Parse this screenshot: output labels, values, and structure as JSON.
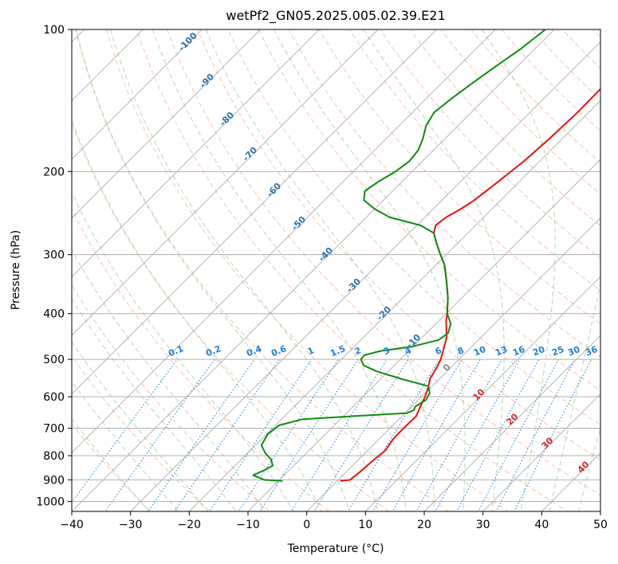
{
  "chart_data": {
    "type": "line",
    "title": "wetPf2_GN05.2025.005.02.39.E21",
    "xlabel": "Temperature (°C)",
    "ylabel": "Pressure (hPa)",
    "xlim": [
      -40,
      50
    ],
    "ylim": [
      1050,
      100
    ],
    "y_scale": "log",
    "x_ticks": [
      "−40",
      "−30",
      "−20",
      "−10",
      "0",
      "10",
      "20",
      "30",
      "40",
      "50"
    ],
    "y_ticks": [
      "100",
      "200",
      "300",
      "400",
      "500",
      "600",
      "700",
      "800",
      "900",
      "1000"
    ],
    "grid": true,
    "skew": 45,
    "series": [
      {
        "color": "#e8110c",
        "values": [
          {
            "p": 905,
            "t": 0.5
          },
          {
            "p": 900,
            "t": 2.0
          },
          {
            "p": 870,
            "t": 2.3
          },
          {
            "p": 820,
            "t": 2.6
          },
          {
            "p": 780,
            "t": 3.0
          },
          {
            "p": 740,
            "t": 2.4
          },
          {
            "p": 700,
            "t": 2.3
          },
          {
            "p": 660,
            "t": 2.4
          },
          {
            "p": 630,
            "t": 1.5
          },
          {
            "p": 600,
            "t": 0.6
          },
          {
            "p": 570,
            "t": -0.6
          },
          {
            "p": 550,
            "t": -1.6
          },
          {
            "p": 520,
            "t": -2.4
          },
          {
            "p": 500,
            "t": -3.1
          },
          {
            "p": 475,
            "t": -4.4
          },
          {
            "p": 450,
            "t": -5.8
          },
          {
            "p": 430,
            "t": -7.4
          },
          {
            "p": 415,
            "t": -8.7
          },
          {
            "p": 400,
            "t": -9.8
          },
          {
            "p": 370,
            "t": -12.4
          },
          {
            "p": 340,
            "t": -15.6
          },
          {
            "p": 315,
            "t": -18.6
          },
          {
            "p": 300,
            "t": -21.0
          },
          {
            "p": 285,
            "t": -23.4
          },
          {
            "p": 270,
            "t": -25.8
          },
          {
            "p": 260,
            "t": -26.8
          },
          {
            "p": 250,
            "t": -26.4
          },
          {
            "p": 240,
            "t": -25.3
          },
          {
            "p": 230,
            "t": -24.5
          },
          {
            "p": 210,
            "t": -23.6
          },
          {
            "p": 190,
            "t": -22.7
          },
          {
            "p": 170,
            "t": -22.2
          },
          {
            "p": 150,
            "t": -21.9
          },
          {
            "p": 130,
            "t": -22.0
          },
          {
            "p": 120,
            "t": -22.2
          },
          {
            "p": 110,
            "t": -21.6
          },
          {
            "p": 100,
            "t": -19.1
          }
        ]
      },
      {
        "color": "#118b11",
        "values": [
          {
            "p": 905,
            "t": -9.3
          },
          {
            "p": 900,
            "t": -12.6
          },
          {
            "p": 880,
            "t": -15.3
          },
          {
            "p": 860,
            "t": -14.3
          },
          {
            "p": 840,
            "t": -13.6
          },
          {
            "p": 815,
            "t": -14.9
          },
          {
            "p": 790,
            "t": -17.0
          },
          {
            "p": 760,
            "t": -19.0
          },
          {
            "p": 720,
            "t": -19.8
          },
          {
            "p": 690,
            "t": -19.4
          },
          {
            "p": 670,
            "t": -16.5
          },
          {
            "p": 660,
            "t": -8.5
          },
          {
            "p": 650,
            "t": 0.3
          },
          {
            "p": 640,
            "t": 1.0
          },
          {
            "p": 630,
            "t": 0.6
          },
          {
            "p": 610,
            "t": 1.3
          },
          {
            "p": 590,
            "t": 0.8
          },
          {
            "p": 570,
            "t": -0.6
          },
          {
            "p": 550,
            "t": -6.5
          },
          {
            "p": 530,
            "t": -12.0
          },
          {
            "p": 515,
            "t": -15.2
          },
          {
            "p": 500,
            "t": -16.7
          },
          {
            "p": 490,
            "t": -16.8
          },
          {
            "p": 480,
            "t": -14.8
          },
          {
            "p": 470,
            "t": -10.2
          },
          {
            "p": 455,
            "t": -6.8
          },
          {
            "p": 440,
            "t": -6.3
          },
          {
            "p": 420,
            "t": -7.5
          },
          {
            "p": 400,
            "t": -9.8
          },
          {
            "p": 370,
            "t": -12.4
          },
          {
            "p": 340,
            "t": -15.6
          },
          {
            "p": 315,
            "t": -18.6
          },
          {
            "p": 300,
            "t": -21.0
          },
          {
            "p": 285,
            "t": -23.4
          },
          {
            "p": 270,
            "t": -25.8
          },
          {
            "p": 260,
            "t": -29.4
          },
          {
            "p": 250,
            "t": -36.0
          },
          {
            "p": 240,
            "t": -40.0
          },
          {
            "p": 230,
            "t": -43.3
          },
          {
            "p": 220,
            "t": -44.7
          },
          {
            "p": 210,
            "t": -44.0
          },
          {
            "p": 200,
            "t": -42.8
          },
          {
            "p": 190,
            "t": -42.2
          },
          {
            "p": 180,
            "t": -42.6
          },
          {
            "p": 170,
            "t": -43.8
          },
          {
            "p": 160,
            "t": -45.4
          },
          {
            "p": 150,
            "t": -46.3
          },
          {
            "p": 140,
            "t": -45.7
          },
          {
            "p": 130,
            "t": -44.8
          },
          {
            "p": 120,
            "t": -43.7
          },
          {
            "p": 110,
            "t": -42.4
          },
          {
            "p": 100,
            "t": -41.5
          }
        ]
      }
    ],
    "dry_adiabat_labels": [
      "-100",
      "-90",
      "-80",
      "-70",
      "-60",
      "-50",
      "-40",
      "-30",
      "-20",
      "-10"
    ],
    "mixing_ratio_labels": [
      "0.1",
      "0.2",
      "0.4",
      "0.6",
      "1",
      "1.5",
      "2",
      "3",
      "4",
      "6",
      "8",
      "10",
      "13",
      "16",
      "20",
      "25",
      "30",
      "36"
    ],
    "moist_adiabat_labels": [
      "0",
      "10",
      "20",
      "30",
      "40"
    ],
    "colors": {
      "temperature": "#e8110c",
      "dewpoint": "#118b11",
      "dry_adiabat": "#fa8c6e",
      "moist_adiabat": "#6ab06a",
      "mixing_ratio": "#1f7fd8",
      "dry_label": "#2a73b0",
      "moist_label": "#d62728",
      "grid": "#b0b0b0",
      "isotherm": "#999999"
    }
  }
}
